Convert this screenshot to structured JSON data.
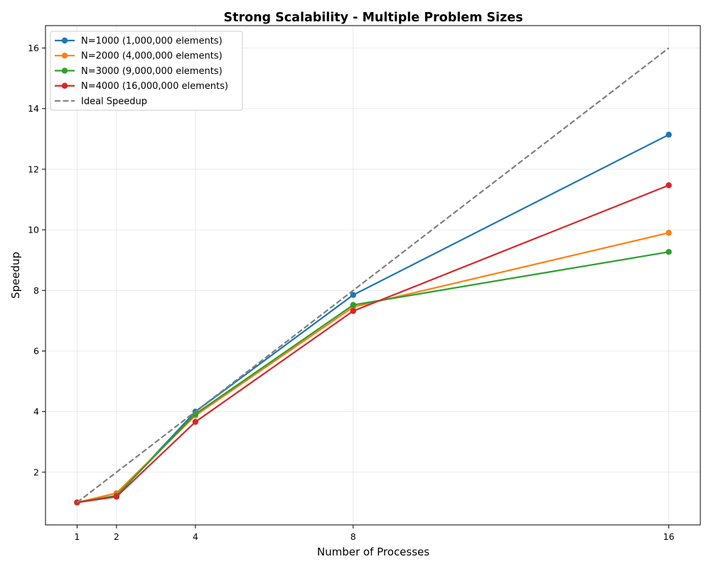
{
  "chart_data": {
    "type": "line",
    "title": "Strong Scalability - Multiple Problem Sizes",
    "xlabel": "Number of Processes",
    "ylabel": "Speedup",
    "x": [
      1,
      2,
      4,
      8,
      16
    ],
    "xticks": [
      "1",
      "2",
      "4",
      "8",
      "16"
    ],
    "yticks": [
      "2",
      "4",
      "6",
      "8",
      "10",
      "12",
      "14",
      "16"
    ],
    "xlim": [
      0.2,
      16.8
    ],
    "ylim": [
      0.26,
      16.74
    ],
    "grid": true,
    "legend_position": "upper-left",
    "series": [
      {
        "name": "N=1000 (1,000,000 elements)",
        "color": "#1f77b4",
        "style": "solid",
        "marker": "circle",
        "values": [
          1.0,
          1.22,
          4.0,
          7.85,
          13.14
        ]
      },
      {
        "name": "N=2000 (4,000,000 elements)",
        "color": "#ff7f0e",
        "style": "solid",
        "marker": "circle",
        "values": [
          1.0,
          1.31,
          3.87,
          7.45,
          9.9
        ]
      },
      {
        "name": "N=3000 (9,000,000 elements)",
        "color": "#2ca02c",
        "style": "solid",
        "marker": "circle",
        "values": [
          1.0,
          1.23,
          3.92,
          7.52,
          9.27
        ]
      },
      {
        "name": "N=4000 (16,000,000 elements)",
        "color": "#d62728",
        "style": "solid",
        "marker": "circle",
        "values": [
          1.0,
          1.19,
          3.66,
          7.32,
          11.47
        ]
      },
      {
        "name": "Ideal Speedup",
        "color": "#7f7f7f",
        "style": "dashed",
        "marker": "none",
        "values": [
          1,
          2,
          4,
          8,
          16
        ]
      }
    ]
  }
}
